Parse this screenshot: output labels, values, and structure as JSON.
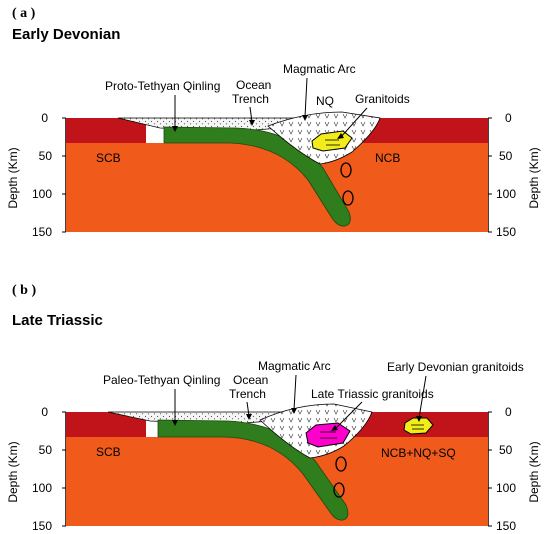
{
  "colors": {
    "upper_crust": "#c0141a",
    "mantle": "#f05a1a",
    "slab": "#2f7d1c",
    "sediment": "#f4f4f4",
    "arc_fill": "#ffffff",
    "granitoid_early": "#f2ec1a",
    "granitoid_late": "#ff00cc",
    "outline": "#000000"
  },
  "panel_a": {
    "panel_label": "( a )",
    "period": "Early Devonian",
    "labels": {
      "qinling": "Proto-Tethyan Qinling",
      "trench_line1": "Ocean",
      "trench_line2": "Trench",
      "arc": "Magmatic Arc",
      "nq": "NQ",
      "granitoids": "Granitoids",
      "left_block": "SCB",
      "right_block": "NCB"
    },
    "axis_title": "Depth (Km)",
    "ticks": [
      "0",
      "50",
      "100",
      "150"
    ]
  },
  "panel_b": {
    "panel_label": "( b )",
    "period": "Late Triassic",
    "labels": {
      "qinling": "Paleo-Tethyan Qinling",
      "trench_line1": "Ocean",
      "trench_line2": "Trench",
      "arc": "Magmatic Arc",
      "late_granitoids": "Late Triassic granitoids",
      "early_granitoids": "Early Devonian granitoids",
      "left_block": "SCB",
      "right_block": "NCB+NQ+SQ"
    },
    "axis_title": "Depth (Km)",
    "ticks": [
      "0",
      "50",
      "100",
      "150"
    ]
  }
}
